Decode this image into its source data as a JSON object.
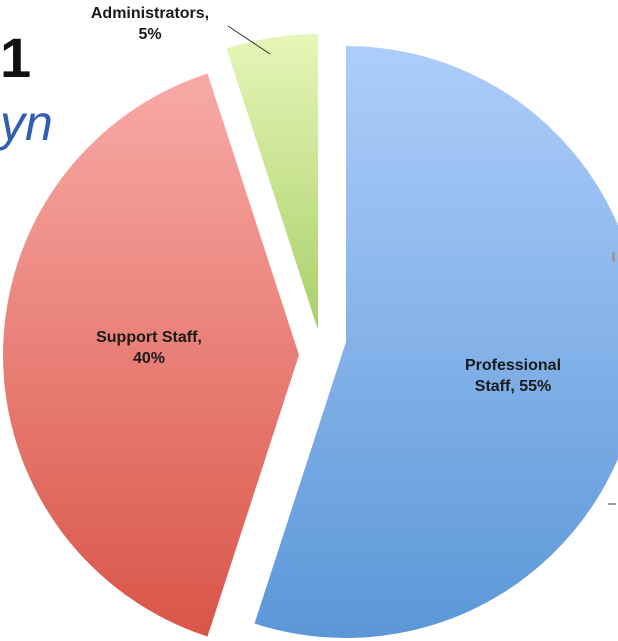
{
  "background_fragments": {
    "number": "1",
    "italic_text": "yn"
  },
  "chart_data": {
    "type": "pie",
    "exploded": true,
    "gradient_fill": true,
    "slices": [
      {
        "label": "Professional Staff",
        "value": 55,
        "display": "Professional Staff, 55%",
        "color_light": "#aecdfa",
        "color_dark": "#5b97d8"
      },
      {
        "label": "Support Staff",
        "value": 40,
        "display": "Support Staff, 40%",
        "color_light": "#f8aaa6",
        "color_dark": "#d95548"
      },
      {
        "label": "Administrators",
        "value": 5,
        "display": "Administrators, 5%",
        "color_light": "#e6f5b8",
        "color_dark": "#a9d06a"
      }
    ]
  }
}
